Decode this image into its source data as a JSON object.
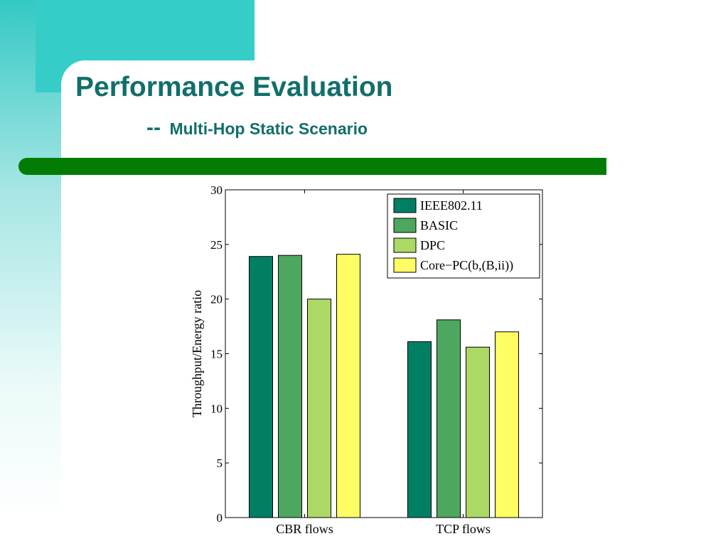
{
  "slide": {
    "title": "Performance Evaluation",
    "subtitle_dash": "--",
    "subtitle": "Multi-Hop Static Scenario",
    "colors": {
      "title": "#116f6a",
      "accent_teal": "#36cdc9",
      "divider_green": "#037c03"
    }
  },
  "chart_data": {
    "type": "bar",
    "title": "",
    "xlabel": "",
    "ylabel": "Throughput/Energy ratio",
    "categories": [
      "CBR flows",
      "TCP flows"
    ],
    "ylim": [
      0,
      30
    ],
    "yticks": [
      0,
      5,
      10,
      15,
      20,
      25,
      30
    ],
    "grid": false,
    "legend_position": "top-right",
    "series": [
      {
        "name": "IEEE802.11",
        "values": [
          23.9,
          16.1
        ],
        "color": "#007f63"
      },
      {
        "name": "BASIC",
        "values": [
          24.0,
          18.1
        ],
        "color": "#4ea75f"
      },
      {
        "name": "DPC",
        "values": [
          20.0,
          15.6
        ],
        "color": "#acd865"
      },
      {
        "name": "Core−PC(b,(B,ii))",
        "values": [
          24.1,
          17.0
        ],
        "color": "#fefd63"
      }
    ]
  }
}
